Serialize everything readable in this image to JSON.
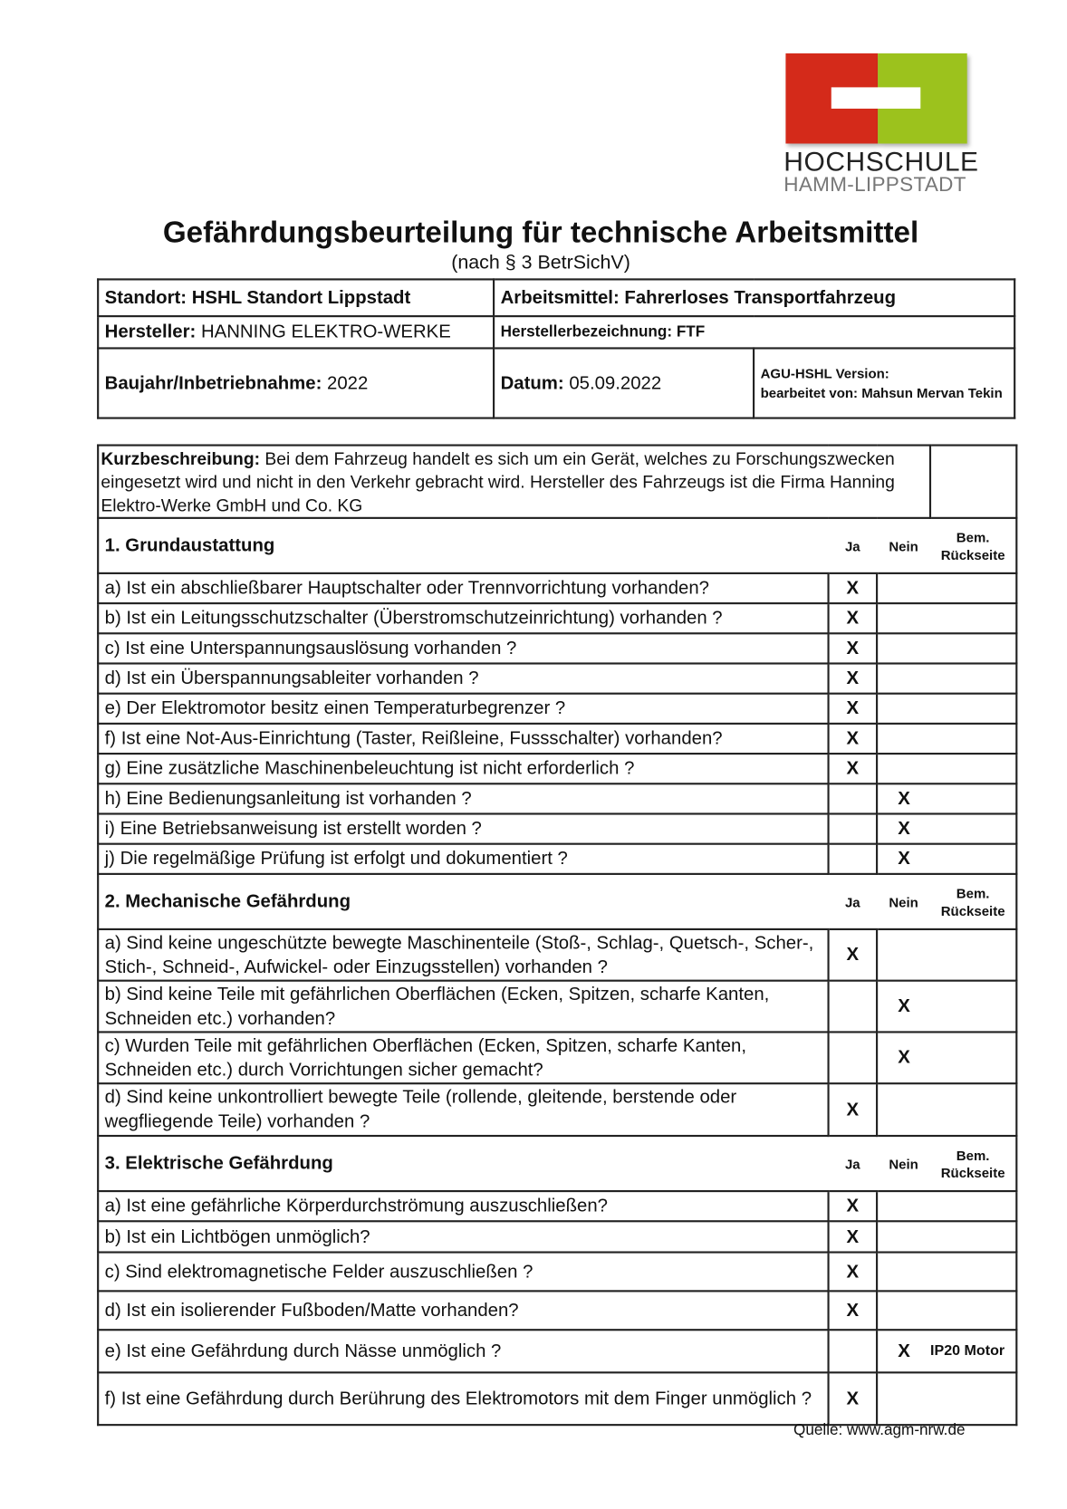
{
  "logo": {
    "line1": "HOCHSCHULE",
    "line2": "HAMM-LIPPSTADT",
    "colors": {
      "red": "#d42a1a",
      "green": "#9cc21d"
    }
  },
  "title": "Gefährdungsbeurteilung für technische Arbeitsmittel",
  "subtitle": "(nach § 3 BetrSichV)",
  "info": {
    "standort_label": "Standort:",
    "standort": "HSHL Standort Lippstadt",
    "arbeitsmittel_label": "Arbeitsmittel:",
    "arbeitsmittel": "Fahrerloses Transportfahrzeug",
    "hersteller_label": "Hersteller:",
    "hersteller": "HANNING ELEKTRO-WERKE",
    "herstellerbez_label": "Herstellerbezeichnung:",
    "herstellerbez": "FTF",
    "baujahr_label": "Baujahr/Inbetriebnahme:",
    "baujahr": "2022",
    "datum_label": "Datum:",
    "datum": "05.09.2022",
    "version_label": "AGU-HSHL Version:",
    "bearbeitet_label": "bearbeitet von:",
    "bearbeitet": "Mahsun Mervan Tekin"
  },
  "kurz": {
    "label": "Kurzbeschreibung:",
    "text": "Bei dem Fahrzeug handelt es sich um ein Gerät, welches zu Forschungszwecken eingesetzt wird und nicht in den Verkehr gebracht wird. Hersteller des Fahrzeugs ist die Firma Hanning Elektro-Werke GmbH und Co. KG"
  },
  "columns": {
    "ja": "Ja",
    "nein": "Nein",
    "bem": "Bem. Rückseite"
  },
  "mark": "X",
  "sections": [
    {
      "title": "1. Grundaustattung",
      "items": [
        {
          "text": "a) Ist ein abschließbarer Hauptschalter oder Trennvorrichtung vorhanden?",
          "answer": "ja",
          "bem": ""
        },
        {
          "text": "b) Ist ein Leitungsschutzschalter (Überstromschutzeinrichtung) vorhanden ?",
          "answer": "ja",
          "bem": ""
        },
        {
          "text": "c) Ist eine Unterspannungsauslösung vorhanden ?",
          "answer": "ja",
          "bem": ""
        },
        {
          "text": "d) Ist ein Überspannungsableiter vorhanden ?",
          "answer": "ja",
          "bem": ""
        },
        {
          "text": "e) Der Elektromotor besitz einen Temperaturbegrenzer ?",
          "answer": "ja",
          "bem": ""
        },
        {
          "text": "f) Ist eine Not-Aus-Einrichtung (Taster, Reißleine, Fussschalter) vorhanden?",
          "answer": "ja",
          "bem": ""
        },
        {
          "text": "g) Eine zusätzliche Maschinenbeleuchtung ist nicht erforderlich ?",
          "answer": "ja",
          "bem": ""
        },
        {
          "text": "h) Eine Bedienungsanleitung ist vorhanden ?",
          "answer": "nein",
          "bem": ""
        },
        {
          "text": "i) Eine Betriebsanweisung ist erstellt worden ?",
          "answer": "nein",
          "bem": ""
        },
        {
          "text": "j) Die regelmäßige Prüfung ist erfolgt und dokumentiert ?",
          "answer": "nein",
          "bem": ""
        }
      ]
    },
    {
      "title": "2. Mechanische Gefährdung",
      "items": [
        {
          "text": "a) Sind keine ungeschützte bewegte Maschinenteile (Stoß-, Schlag-, Quetsch-, Scher-, Stich-, Schneid-, Aufwickel- oder Einzugsstellen) vorhanden ?",
          "answer": "ja",
          "bem": ""
        },
        {
          "text": "b) Sind keine Teile mit gefährlichen Oberflächen (Ecken, Spitzen, scharfe Kanten, Schneiden etc.) vorhanden?",
          "answer": "nein",
          "bem": ""
        },
        {
          "text": "c) Wurden Teile mit gefährlichen Oberflächen (Ecken, Spitzen, scharfe Kanten, Schneiden etc.) durch Vorrichtungen sicher gemacht?",
          "answer": "nein",
          "bem": ""
        },
        {
          "text": "d) Sind keine unkontrolliert bewegte Teile (rollende, gleitende, berstende oder wegfliegende Teile) vorhanden ?",
          "answer": "ja",
          "bem": ""
        }
      ]
    },
    {
      "title": "3. Elektrische Gefährdung",
      "items": [
        {
          "text": "a) Ist eine gefährliche Körperdurchströmung auszuschließen?",
          "answer": "ja",
          "bem": ""
        },
        {
          "text": "b) Ist ein Lichtbögen unmöglich?",
          "answer": "ja",
          "bem": ""
        },
        {
          "text": "c) Sind elektromagnetische Felder auszuschließen ?",
          "answer": "ja",
          "bem": ""
        },
        {
          "text": "d) Ist ein isolierender Fußboden/Matte vorhanden?",
          "answer": "ja",
          "bem": ""
        },
        {
          "text": "e) Ist eine Gefährdung durch Nässe unmöglich ?",
          "answer": "nein",
          "bem": "IP20 Motor"
        },
        {
          "text": "f) Ist eine Gefährdung durch Berührung des Elektromotors mit dem Finger unmöglich ?",
          "answer": "ja",
          "bem": ""
        }
      ]
    }
  ],
  "quelle": "Quelle: www.agm-nrw.de"
}
